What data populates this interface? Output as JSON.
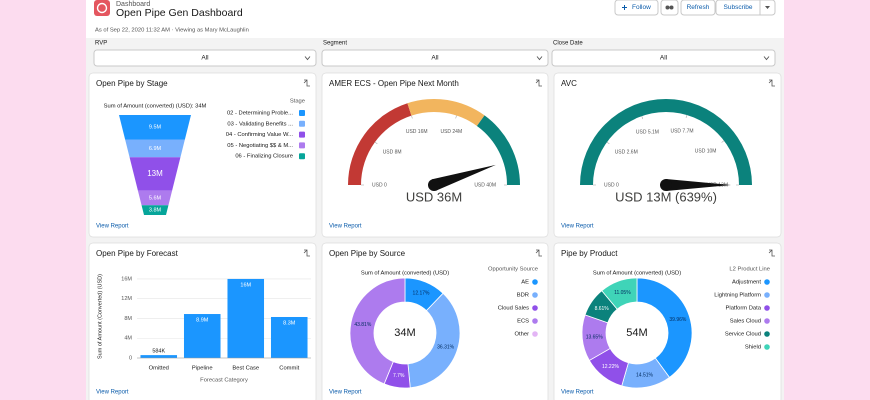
{
  "header": {
    "breadcrumb": "Dashboard",
    "title": "Open Pipe Gen Dashboard",
    "buttons": [
      "Follow",
      "Refresh",
      "Subscribe"
    ],
    "subtitle": "As of Sep 22, 2020 11:32 AM · Viewing as Mary McLaughlin"
  },
  "filters": [
    {
      "label": "RVP",
      "value": "All"
    },
    {
      "label": "Segment",
      "value": "All"
    },
    {
      "label": "Close Date",
      "value": "All"
    }
  ],
  "widgets": [
    {
      "type": "funnel",
      "title": "Open Pipe by Stage",
      "subtitle": "Sum of Amount (converted) (USD): 34M",
      "legend_title": "Stage",
      "categories": [
        "02 - Determining Proble...",
        "03 - Validating Benefits ...",
        "04 - Confirming Value W...",
        "05 - Negotiating $$ & M...",
        "06 - Finalizing Closure"
      ],
      "values": [
        9.5,
        6.9,
        13,
        5.6,
        3.8
      ],
      "value_labels": [
        "9.5M",
        "6.9M",
        "13M",
        "5.6M",
        "3.8M"
      ],
      "colors": [
        "#1b96ff",
        "#78b0fd",
        "#9050e9",
        "#ad7bee",
        "#06a59a"
      ],
      "link": "View Report"
    },
    {
      "type": "gauge",
      "title": "AMER ECS - Open Pipe Next Month",
      "lim": [
        0,
        40
      ],
      "ticks": [
        {
          "value": 0,
          "label": "USD 0"
        },
        {
          "value": 8,
          "label": "USD 8M"
        },
        {
          "value": 16,
          "label": "USD 16M"
        },
        {
          "value": 24,
          "label": "USD 24M"
        },
        {
          "value": 40,
          "label": "USD 40M"
        }
      ],
      "breakpoints": [
        16,
        28
      ],
      "band_colors": [
        "#c23934",
        "#f2b55e",
        "#0b827c"
      ],
      "value": 36,
      "value_label": "USD 36M",
      "link": "View Report"
    },
    {
      "type": "gauge",
      "title": "AVC",
      "lim": [
        0,
        13
      ],
      "ticks": [
        {
          "value": 0,
          "label": "USD 0"
        },
        {
          "value": 2.6,
          "label": "USD 2.6M"
        },
        {
          "value": 5.1,
          "label": "USD 5.1M"
        },
        {
          "value": 7.7,
          "label": "USD 7.7M"
        },
        {
          "value": 10.3,
          "label": "USD 10M"
        },
        {
          "value": 13,
          "label": "USD 13M"
        }
      ],
      "breakpoints": [],
      "band_colors": [
        "#0b827c"
      ],
      "value": 13,
      "value_label": "USD 13M (639%)",
      "link": "View Report"
    },
    {
      "type": "bar",
      "title": "Open Pipe by Forecast",
      "y_label": "Sum of Amount (Converted) (USD)",
      "x_label": "Forecast Category",
      "categories": [
        "Omitted",
        "Pipeline",
        "Best Case",
        "Commit"
      ],
      "values": [
        0.584,
        8.9,
        16,
        8.3
      ],
      "value_labels": [
        "584K",
        "8.9M",
        "16M",
        "8.3M"
      ],
      "color": "#1b96ff",
      "ylim": [
        0,
        16.8
      ],
      "yticks": [
        0,
        {
          "value": 4,
          "label": "4M"
        },
        {
          "value": 8,
          "label": "8M"
        },
        {
          "value": 12,
          "label": "12M"
        },
        {
          "value": 16,
          "label": "16M"
        }
      ],
      "link": "View Report"
    },
    {
      "type": "donut",
      "title": "Open Pipe by Source",
      "subtitle": "Sum of Amount (converted) (USD)",
      "legend_title": "Opportunity Source",
      "categories": [
        "AE",
        "BDR",
        "Cloud Sales",
        "ECS",
        "Other"
      ],
      "values": [
        12.17,
        36.31,
        7.7,
        43.81,
        0
      ],
      "value_labels": [
        "12.17%",
        "36.31%",
        "7.7%",
        "43.81%",
        null
      ],
      "colors": [
        "#1b96ff",
        "#78b0fd",
        "#9050e9",
        "#ad7bee",
        "#e3b5f5"
      ],
      "center_label": "34M",
      "link": "View Report"
    },
    {
      "type": "donut",
      "title": "Pipe by Product",
      "subtitle": "Sum of Amount (converted) (USD)",
      "legend_title": "L2 Product Line",
      "categories": [
        "Adjustment",
        "Lightning Platform",
        "Platform Data",
        "Sales Cloud",
        "Service Cloud",
        "Shield"
      ],
      "values": [
        39.96,
        14.51,
        12.22,
        13.65,
        8.61,
        11.05
      ],
      "value_labels": [
        "39.96%",
        "14.51%",
        "12.22%",
        "13.65%",
        "8.61%",
        "11.05%"
      ],
      "colors": [
        "#1b96ff",
        "#78b0fd",
        "#9050e9",
        "#ad7bee",
        "#0b827c",
        "#3fd4b8"
      ],
      "center_label": "54M",
      "link": "View Report"
    }
  ]
}
